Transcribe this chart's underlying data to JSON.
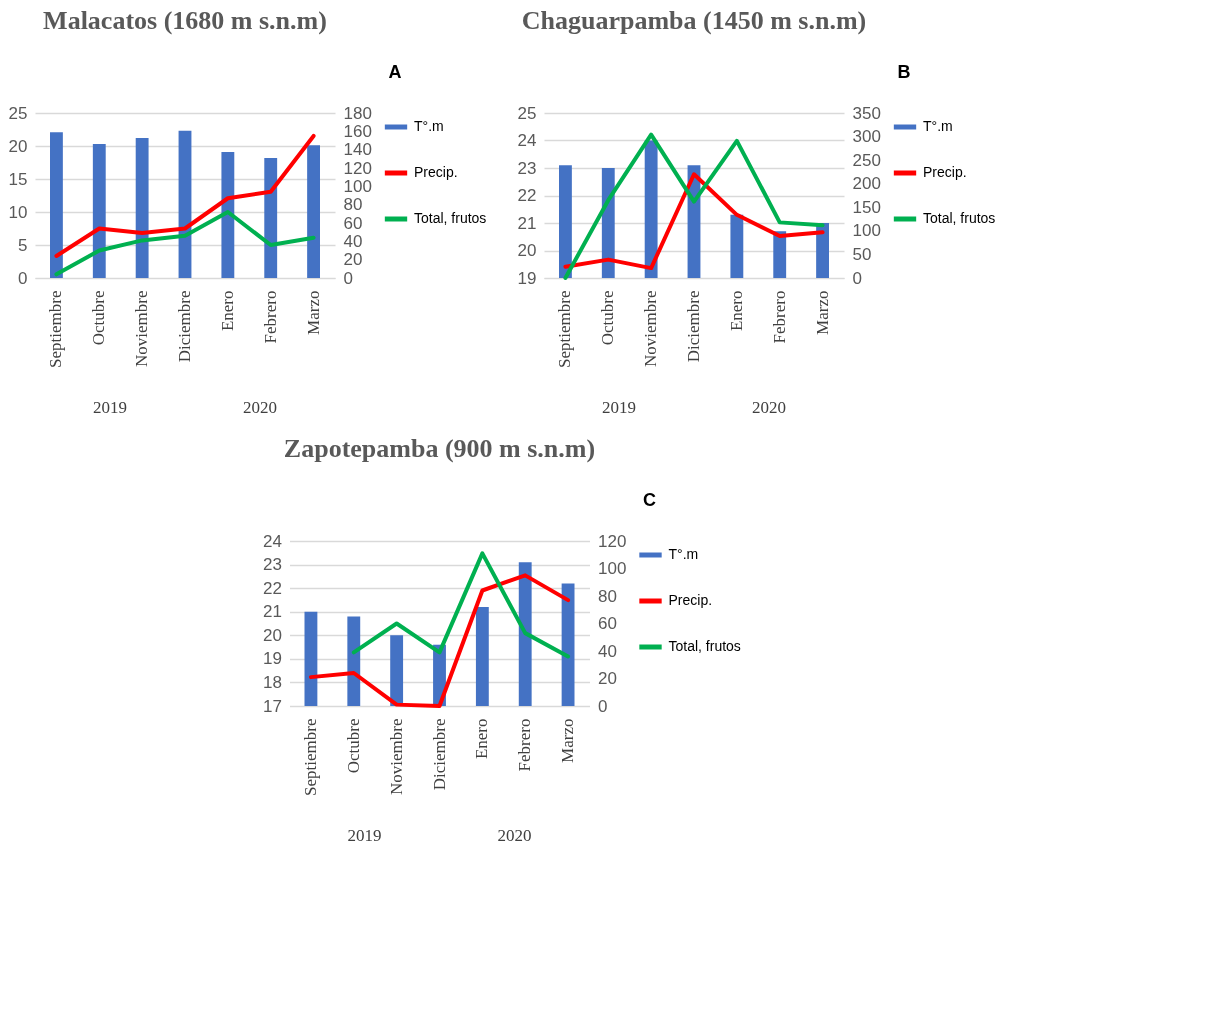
{
  "chart_data": [
    {
      "type": "bar",
      "title": "Malacatos (1680 m s.n.m)",
      "annotations": [
        "A",
        "2019",
        "2020"
      ],
      "categories": [
        "Septiembre",
        "Octubre",
        "Noviembre",
        "Diciembre",
        "Enero",
        "Febrero",
        "Marzo"
      ],
      "series": [
        {
          "name": "T°.m",
          "color": "#4472c4",
          "values": [
            22.1,
            20.3,
            21.2,
            22.3,
            19.1,
            18.2,
            20.1
          ]
        },
        {
          "name": "Precip.",
          "type": "line",
          "axis": "y2",
          "color": "#ff0000",
          "values": [
            24,
            54,
            49,
            54,
            87,
            94,
            155
          ]
        },
        {
          "name": "Total, frutos",
          "type": "line",
          "axis": "y2",
          "color": "#00b050",
          "values": [
            4,
            30,
            41,
            46,
            72,
            36,
            44
          ]
        }
      ],
      "ylim": [
        0,
        25
      ],
      "yticks": [
        0,
        5,
        10,
        15,
        20,
        25
      ],
      "y2lim": [
        0,
        180
      ],
      "y2ticks": [
        0,
        20,
        40,
        60,
        80,
        100,
        120,
        140,
        160,
        180
      ],
      "grid": "y",
      "legend": "right",
      "line_style": "solid",
      "marker": "none"
    },
    {
      "type": "bar",
      "title": "Chaguarpamba (1450 m s.n.m)",
      "annotations": [
        "B",
        "2019",
        "2020"
      ],
      "categories": [
        "Septiembre",
        "Octubre",
        "Noviembre",
        "Diciembre",
        "Enero",
        "Febrero",
        "Marzo"
      ],
      "series": [
        {
          "name": "T°.m",
          "color": "#4472c4",
          "values": [
            23.1,
            23.0,
            24.0,
            23.1,
            21.3,
            20.7,
            21.0
          ]
        },
        {
          "name": "Precip.",
          "type": "line",
          "axis": "y2",
          "color": "#ff0000",
          "values": [
            24,
            39,
            21,
            220,
            134,
            89,
            97
          ]
        },
        {
          "name": "Total, frutos",
          "type": "line",
          "axis": "y2",
          "color": "#00b050",
          "values": [
            0,
            165,
            304,
            162,
            291,
            118,
            112
          ]
        }
      ],
      "ylim": [
        19,
        25
      ],
      "yticks": [
        19,
        20,
        21,
        22,
        23,
        24,
        25
      ],
      "y2lim": [
        0,
        350
      ],
      "y2ticks": [
        0,
        50,
        100,
        150,
        200,
        250,
        300,
        350
      ],
      "grid": "y",
      "legend": "right",
      "line_style": "solid",
      "marker": "none"
    },
    {
      "type": "bar",
      "title": "Zapotepamba (900 m s.n.m)",
      "annotations": [
        "C",
        "2019",
        "2020"
      ],
      "categories": [
        "Septiembre",
        "Octubre",
        "Noviembre",
        "Diciembre",
        "Enero",
        "Febrero",
        "Marzo"
      ],
      "series": [
        {
          "name": "T°.m",
          "color": "#4472c4",
          "values": [
            21.0,
            20.8,
            20.0,
            19.6,
            21.2,
            23.1,
            22.2
          ]
        },
        {
          "name": "Precip.",
          "type": "line",
          "axis": "y2",
          "color": "#ff0000",
          "values": [
            21,
            24,
            1,
            0,
            84,
            95,
            77
          ]
        },
        {
          "name": "Total, frutos",
          "type": "line",
          "axis": "y2",
          "color": "#00b050",
          "values": [
            null,
            39,
            60,
            39,
            111,
            53,
            36
          ]
        }
      ],
      "ylim": [
        17,
        24
      ],
      "yticks": [
        17,
        18,
        19,
        20,
        21,
        22,
        23,
        24
      ],
      "y2lim": [
        0,
        120
      ],
      "y2ticks": [
        0,
        20,
        40,
        60,
        80,
        100,
        120
      ],
      "grid": "y",
      "legend": "right",
      "line_style": "solid",
      "marker": "none"
    }
  ]
}
